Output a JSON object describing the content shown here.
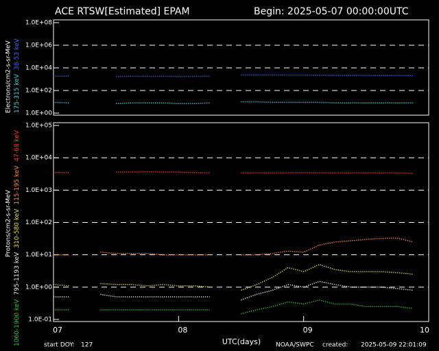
{
  "chart_data": [
    {
      "type": "scatter",
      "title": "ACE RTSW[Estimated] EPAM",
      "subtitle": "Begin: 2025-05-07 00:00:00UTC",
      "ylabel": "Electrons/cm2-s-sr-MeV",
      "log_y": true,
      "grid": true,
      "x": [
        0,
        0.125,
        0.25,
        0.375,
        0.5,
        0.625,
        0.75,
        0.875,
        1,
        1.125,
        1.25,
        1.375,
        1.5,
        1.625,
        1.75,
        1.875,
        2,
        2.125,
        2.25,
        2.375,
        2.5,
        2.625,
        2.75,
        2.875
      ],
      "xlim": [
        0,
        3
      ],
      "ylim": [
        1,
        100000000
      ],
      "yticks": [
        {
          "value": 1,
          "label": "1.0E+00"
        },
        {
          "value": 100,
          "label": "1.0E+02"
        },
        {
          "value": 10000,
          "label": "1.0E+04"
        },
        {
          "value": 1000000,
          "label": "1.0E+06"
        },
        {
          "value": 100000000,
          "label": "1.0E+08"
        }
      ],
      "series": [
        {
          "name": "175-315 keV",
          "color": "#40d0e0",
          "values": [
            9,
            8,
            null,
            null,
            7,
            8,
            8,
            8,
            7,
            7,
            8,
            null,
            10,
            10,
            9,
            9,
            9,
            9,
            8,
            8,
            8,
            8,
            8,
            8
          ]
        },
        {
          "name": "38-53 keV",
          "color": "#3a64ff",
          "values": [
            1800,
            1900,
            null,
            null,
            1700,
            1800,
            1750,
            1800,
            1700,
            1750,
            1800,
            null,
            2300,
            2400,
            2350,
            2300,
            2300,
            2250,
            2200,
            2200,
            2150,
            2100,
            2100,
            2050
          ]
        }
      ]
    },
    {
      "type": "scatter",
      "xlabel": "UTC(days)",
      "ylabel": "Protons/cm2-s-sr-MeV",
      "log_y": true,
      "grid": true,
      "x": [
        0,
        0.125,
        0.25,
        0.375,
        0.5,
        0.625,
        0.75,
        0.875,
        1,
        1.125,
        1.25,
        1.375,
        1.5,
        1.625,
        1.75,
        1.875,
        2,
        2.125,
        2.25,
        2.375,
        2.5,
        2.625,
        2.75,
        2.875
      ],
      "xlim": [
        0,
        3
      ],
      "ylim": [
        0.1,
        100000
      ],
      "xticks": [
        {
          "value": 0,
          "label": "07"
        },
        {
          "value": 1,
          "label": "08"
        },
        {
          "value": 2,
          "label": "09"
        },
        {
          "value": 3,
          "label": "10"
        }
      ],
      "yticks": [
        {
          "value": 0.1,
          "label": "1.0E-01"
        },
        {
          "value": 1,
          "label": "1.0E+00"
        },
        {
          "value": 10,
          "label": "1.0E+01"
        },
        {
          "value": 100,
          "label": "1.0E+02"
        },
        {
          "value": 1000,
          "label": "1.0E+03"
        },
        {
          "value": 10000,
          "label": "1.0E+04"
        },
        {
          "value": 100000,
          "label": "1.0E+05"
        }
      ],
      "series": [
        {
          "name": "1060-1900 keV",
          "color": "#30c030",
          "values": [
            0.2,
            0.2,
            null,
            0.2,
            0.2,
            0.2,
            0.2,
            0.2,
            0.2,
            0.2,
            0.2,
            null,
            0.15,
            0.2,
            0.25,
            0.35,
            0.3,
            0.4,
            0.3,
            0.3,
            0.25,
            0.25,
            0.25,
            0.22
          ]
        },
        {
          "name": "795-1193 keV",
          "color": "#e8e8e8",
          "values": [
            0.5,
            0.5,
            null,
            0.6,
            0.5,
            0.5,
            0.5,
            0.5,
            0.5,
            0.5,
            0.5,
            null,
            0.4,
            0.6,
            0.8,
            1.2,
            1.0,
            1.5,
            1.2,
            1.0,
            1.0,
            1.0,
            0.9,
            0.8
          ]
        },
        {
          "name": "310-580 keV",
          "color": "#e0e040",
          "values": [
            1.2,
            1.1,
            null,
            1.3,
            1.2,
            1.2,
            1.1,
            1.2,
            1.1,
            1.1,
            1.0,
            null,
            0.8,
            1.2,
            2,
            4,
            3,
            5,
            3.5,
            3,
            3,
            3,
            2.8,
            2.5
          ]
        },
        {
          "name": "115-195 keV",
          "color": "#ff8a40",
          "values": [
            10,
            10,
            null,
            12,
            11,
            11,
            11,
            10,
            10,
            10,
            10,
            null,
            10,
            10,
            11,
            13,
            12,
            20,
            25,
            27,
            30,
            32,
            33,
            25
          ]
        },
        {
          "name": "47-68 keV",
          "color": "#ff3a20",
          "values": [
            3500,
            3500,
            null,
            null,
            3600,
            3600,
            3700,
            3600,
            3600,
            3500,
            3400,
            null,
            3400,
            3400,
            3400,
            3400,
            3500,
            3400,
            3400,
            3400,
            3400,
            3400,
            3400,
            3300
          ]
        }
      ]
    }
  ],
  "footer": {
    "start_label": "start DOY:",
    "start_doy": 127,
    "source": "NOAA/SWPC",
    "created_label": "created:",
    "created": "2025-05-09 22:01:09"
  }
}
